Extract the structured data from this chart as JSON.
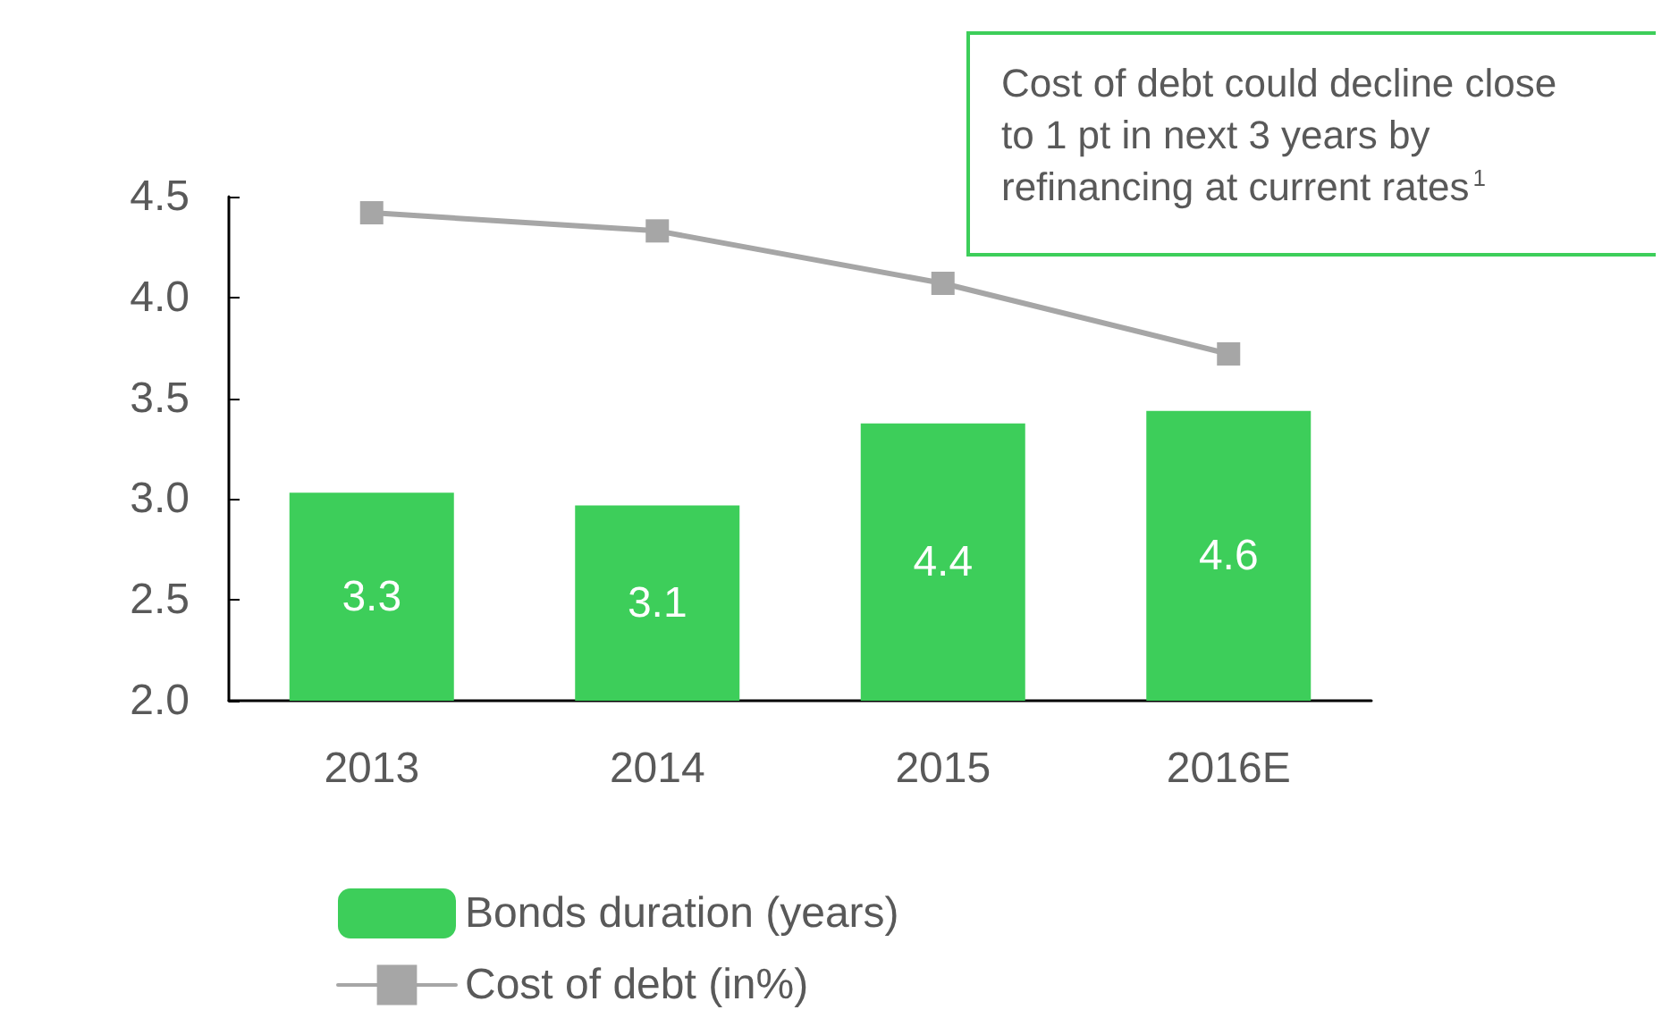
{
  "chart_data": {
    "type": "bar",
    "categories": [
      "2013",
      "2014",
      "2015",
      "2016E"
    ],
    "series": [
      {
        "name": "Bonds duration (years)",
        "color": "#3dce5a",
        "axis": "y2",
        "values": [
          3.3,
          3.1,
          4.4,
          4.6
        ],
        "value_labels": [
          "3.3",
          "3.1",
          "4.4",
          "4.6"
        ]
      },
      {
        "type": "line",
        "name": "Cost of debt (in%)",
        "color": "#a6a6a6",
        "values": [
          4.42,
          4.33,
          4.07,
          3.72
        ]
      }
    ],
    "ylim": [
      2,
      4.5
    ],
    "yticks": [
      {
        "value": 2,
        "label": "2.0"
      },
      {
        "value": 2.5,
        "label": "2.5"
      },
      {
        "value": 3,
        "label": "3.0"
      },
      {
        "value": 3.5,
        "label": "3.5"
      },
      {
        "value": 4,
        "label": "4.0"
      },
      {
        "value": 4.5,
        "label": "4.5"
      }
    ],
    "y2lim": [
      0,
      8
    ],
    "marker": "square",
    "legend": "bottom left",
    "grid": false,
    "annotations": [
      "Cost of debt could decline close to 1 pt in next 3 years by refinancing at current rates$^{1}$"
    ]
  }
}
